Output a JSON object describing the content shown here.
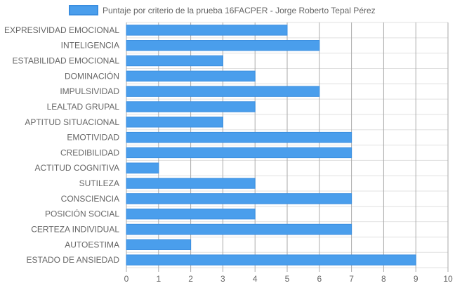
{
  "chart_data": {
    "type": "bar",
    "orientation": "horizontal",
    "legend": {
      "position": "top",
      "label": "Puntaje por criterio de la prueba 16FACPER - Jorge Roberto Tepal Pérez"
    },
    "categories": [
      "EXPRESIVIDAD EMOCIONAL",
      "INTELIGENCIA",
      "ESTABILIDAD EMOCIONAL",
      "DOMINACIÓN",
      "IMPULSIVIDAD",
      "LEALTAD GRUPAL",
      "APTITUD SITUACIONAL",
      "EMOTIVIDAD",
      "CREDIBILIDAD",
      "ACTITUD COGNITIVA",
      "SUTILEZA",
      "CONSCIENCIA",
      "POSICIÓN SOCIAL",
      "CERTEZA INDIVIDUAL",
      "AUTOESTIMA",
      "ESTADO DE ANSIEDAD"
    ],
    "series": [
      {
        "name": "Puntaje por criterio de la prueba 16FACPER - Jorge Roberto Tepal Pérez",
        "values": [
          5,
          6,
          3,
          4,
          6,
          4,
          3,
          7,
          7,
          1,
          4,
          7,
          4,
          7,
          2,
          9
        ]
      }
    ],
    "xlim": [
      0,
      10
    ],
    "x_ticks": [
      0,
      1,
      2,
      3,
      4,
      5,
      6,
      7,
      8,
      9,
      10
    ],
    "grid": true,
    "colors": {
      "bar_fill": "#4a9eec",
      "bar_stroke": "#3a8ee0",
      "grid": "#e0e0e0",
      "axis_grid": "#aaaaaa",
      "text": "#666666"
    }
  }
}
